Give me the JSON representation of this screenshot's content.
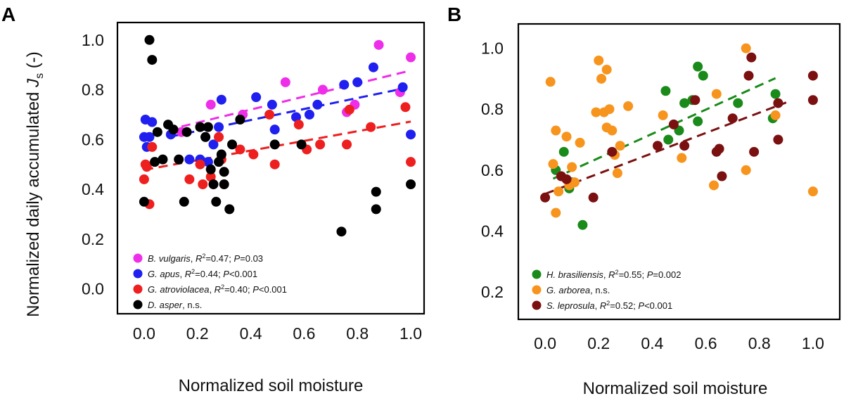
{
  "chart_data": [
    {
      "panel": "A",
      "type": "scatter",
      "xlabel": "Normalized soil moisture",
      "ylabel": "Normalized daily accumulated J_s (-)",
      "ylabel_main": "Normalized daily accumulated ",
      "ylabel_var": "J",
      "ylabel_sub": "s",
      "ylabel_unit": " (-)",
      "xlim": [
        -0.1,
        1.05
      ],
      "ylim": [
        -0.1,
        1.07
      ],
      "xticks": [
        "0.0",
        "0.2",
        "0.4",
        "0.6",
        "0.8",
        "1.0"
      ],
      "yticks": [
        "0.0",
        "0.2",
        "0.4",
        "0.6",
        "0.8",
        "1.0"
      ],
      "legend_position": "bottom-left",
      "series": [
        {
          "name": "B. vulgaris",
          "color": "#ee2ee8",
          "legend_tail": ", R2=0.47; P=0.03",
          "legend_parts": [
            [
              "B. vulgaris",
              "i"
            ],
            [
              ", ",
              ""
            ],
            [
              "R",
              "i"
            ],
            [
              "2",
              "sup"
            ],
            [
              "=0.47; ",
              ""
            ],
            [
              "P",
              "i"
            ],
            [
              "=0.03",
              ""
            ]
          ],
          "fit": [
            [
              0.14,
              0.652
            ],
            [
              0.98,
              0.872
            ]
          ],
          "points": [
            [
              0.14,
              0.63
            ],
            [
              0.25,
              0.74
            ],
            [
              0.37,
              0.7
            ],
            [
              0.53,
              0.83
            ],
            [
              0.67,
              0.8
            ],
            [
              0.76,
              0.71
            ],
            [
              0.79,
              0.74
            ],
            [
              0.88,
              0.98
            ],
            [
              0.96,
              0.79
            ],
            [
              1.0,
              0.93
            ]
          ]
        },
        {
          "name": "G. apus",
          "color": "#1f1ff0",
          "legend_parts": [
            [
              "G. apus",
              "i"
            ],
            [
              ", ",
              ""
            ],
            [
              "R",
              "i"
            ],
            [
              "2",
              "sup"
            ],
            [
              "=0.44; ",
              ""
            ],
            [
              "P",
              "i"
            ],
            [
              "<0.001",
              ""
            ]
          ],
          "fit": [
            [
              0.1,
              0.612
            ],
            [
              0.96,
              0.802
            ]
          ],
          "points": [
            [
              0.0,
              0.61
            ],
            [
              0.005,
              0.68
            ],
            [
              0.01,
              0.57
            ],
            [
              0.02,
              0.61
            ],
            [
              0.03,
              0.67
            ],
            [
              0.1,
              0.62
            ],
            [
              0.17,
              0.52
            ],
            [
              0.21,
              0.52
            ],
            [
              0.23,
              0.61
            ],
            [
              0.24,
              0.51
            ],
            [
              0.26,
              0.58
            ],
            [
              0.28,
              0.65
            ],
            [
              0.29,
              0.76
            ],
            [
              0.42,
              0.77
            ],
            [
              0.48,
              0.74
            ],
            [
              0.49,
              0.64
            ],
            [
              0.57,
              0.69
            ],
            [
              0.62,
              0.7
            ],
            [
              0.65,
              0.74
            ],
            [
              0.75,
              0.82
            ],
            [
              0.8,
              0.83
            ],
            [
              0.86,
              0.89
            ],
            [
              0.97,
              0.81
            ],
            [
              1.0,
              0.62
            ]
          ]
        },
        {
          "name": "G. atroviolacea",
          "color": "#ee1f1f",
          "legend_parts": [
            [
              "G. atroviolacea",
              "i"
            ],
            [
              ", ",
              ""
            ],
            [
              "R",
              "i"
            ],
            [
              "2",
              "sup"
            ],
            [
              "=0.40; ",
              ""
            ],
            [
              "P",
              "i"
            ],
            [
              "<0.001",
              ""
            ]
          ],
          "fit": [
            [
              0.0,
              0.478
            ],
            [
              1.0,
              0.672
            ]
          ],
          "points": [
            [
              0.0,
              0.44
            ],
            [
              0.005,
              0.5
            ],
            [
              0.01,
              0.49
            ],
            [
              0.02,
              0.34
            ],
            [
              0.03,
              0.57
            ],
            [
              0.17,
              0.44
            ],
            [
              0.21,
              0.5
            ],
            [
              0.22,
              0.42
            ],
            [
              0.25,
              0.45
            ],
            [
              0.28,
              0.61
            ],
            [
              0.29,
              0.52
            ],
            [
              0.36,
              0.56
            ],
            [
              0.41,
              0.54
            ],
            [
              0.47,
              0.7
            ],
            [
              0.49,
              0.5
            ],
            [
              0.58,
              0.66
            ],
            [
              0.61,
              0.56
            ],
            [
              0.66,
              0.58
            ],
            [
              0.76,
              0.58
            ],
            [
              0.77,
              0.72
            ],
            [
              0.85,
              0.65
            ],
            [
              0.98,
              0.73
            ],
            [
              1.0,
              0.51
            ]
          ]
        },
        {
          "name": "D. asper",
          "color": "#000000",
          "legend_parts": [
            [
              "D. asper",
              "i"
            ],
            [
              ", n.s.",
              ""
            ]
          ],
          "fit": null,
          "points": [
            [
              0.0,
              0.35
            ],
            [
              0.02,
              1.0
            ],
            [
              0.03,
              0.92
            ],
            [
              0.04,
              0.51
            ],
            [
              0.05,
              0.63
            ],
            [
              0.07,
              0.52
            ],
            [
              0.09,
              0.66
            ],
            [
              0.11,
              0.64
            ],
            [
              0.13,
              0.52
            ],
            [
              0.15,
              0.35
            ],
            [
              0.16,
              0.63
            ],
            [
              0.21,
              0.65
            ],
            [
              0.23,
              0.61
            ],
            [
              0.24,
              0.65
            ],
            [
              0.25,
              0.48
            ],
            [
              0.26,
              0.42
            ],
            [
              0.27,
              0.35
            ],
            [
              0.28,
              0.51
            ],
            [
              0.29,
              0.54
            ],
            [
              0.3,
              0.42
            ],
            [
              0.3,
              0.47
            ],
            [
              0.32,
              0.32
            ],
            [
              0.33,
              0.58
            ],
            [
              0.36,
              0.68
            ],
            [
              0.49,
              0.58
            ],
            [
              0.59,
              0.58
            ],
            [
              0.74,
              0.23
            ],
            [
              0.87,
              0.39
            ],
            [
              0.87,
              0.32
            ],
            [
              1.0,
              0.42
            ]
          ]
        }
      ]
    },
    {
      "panel": "B",
      "type": "scatter",
      "xlabel": "Normalized soil moisture",
      "ylabel": "",
      "xlim": [
        -0.1,
        1.1
      ],
      "ylim": [
        0.11,
        1.08
      ],
      "xticks": [
        "0.0",
        "0.2",
        "0.4",
        "0.6",
        "0.8",
        "1.0"
      ],
      "yticks": [
        "0.2",
        "0.4",
        "0.6",
        "0.8",
        "1.0"
      ],
      "legend_position": "bottom-left",
      "series": [
        {
          "name": "H. brasiliensis",
          "color": "#1a8a1a",
          "legend_parts": [
            [
              "H. brasiliensis",
              "i"
            ],
            [
              ", ",
              ""
            ],
            [
              "R",
              "i"
            ],
            [
              "2",
              "sup"
            ],
            [
              "=0.55; ",
              ""
            ],
            [
              "P",
              "i"
            ],
            [
              "=0.002",
              ""
            ]
          ],
          "fit": [
            [
              0.03,
              0.572
            ],
            [
              0.86,
              0.902
            ]
          ],
          "points": [
            [
              0.04,
              0.6
            ],
            [
              0.07,
              0.66
            ],
            [
              0.09,
              0.54
            ],
            [
              0.1,
              0.56
            ],
            [
              0.14,
              0.42
            ],
            [
              0.45,
              0.86
            ],
            [
              0.46,
              0.7
            ],
            [
              0.5,
              0.73
            ],
            [
              0.52,
              0.82
            ],
            [
              0.55,
              0.83
            ],
            [
              0.57,
              0.76
            ],
            [
              0.57,
              0.94
            ],
            [
              0.59,
              0.91
            ],
            [
              0.72,
              0.82
            ],
            [
              0.85,
              0.77
            ],
            [
              0.86,
              0.85
            ]
          ]
        },
        {
          "name": "G. arborea",
          "color": "#f7941d",
          "legend_parts": [
            [
              "G. arborea",
              "i"
            ],
            [
              ", n.s.",
              ""
            ]
          ],
          "fit": null,
          "points": [
            [
              0.02,
              0.89
            ],
            [
              0.03,
              0.62
            ],
            [
              0.04,
              0.73
            ],
            [
              0.04,
              0.46
            ],
            [
              0.05,
              0.53
            ],
            [
              0.06,
              0.58
            ],
            [
              0.08,
              0.71
            ],
            [
              0.09,
              0.55
            ],
            [
              0.1,
              0.61
            ],
            [
              0.11,
              0.56
            ],
            [
              0.13,
              0.69
            ],
            [
              0.19,
              0.79
            ],
            [
              0.2,
              0.96
            ],
            [
              0.21,
              0.9
            ],
            [
              0.22,
              0.79
            ],
            [
              0.23,
              0.74
            ],
            [
              0.23,
              0.93
            ],
            [
              0.24,
              0.8
            ],
            [
              0.25,
              0.73
            ],
            [
              0.26,
              0.65
            ],
            [
              0.27,
              0.59
            ],
            [
              0.28,
              0.68
            ],
            [
              0.31,
              0.81
            ],
            [
              0.44,
              0.78
            ],
            [
              0.51,
              0.64
            ],
            [
              0.63,
              0.55
            ],
            [
              0.64,
              0.85
            ],
            [
              0.75,
              1.0
            ],
            [
              0.75,
              0.6
            ],
            [
              0.86,
              0.78
            ],
            [
              1.0,
              0.53
            ]
          ]
        },
        {
          "name": "S. leprosula",
          "color": "#7b1010",
          "legend_parts": [
            [
              "S. leprosula",
              "i"
            ],
            [
              ", ",
              ""
            ],
            [
              "R",
              "i"
            ],
            [
              "2",
              "sup"
            ],
            [
              "=0.52; ",
              ""
            ],
            [
              "P",
              "i"
            ],
            [
              "<0.001",
              ""
            ]
          ],
          "fit": [
            [
              0.0,
              0.522
            ],
            [
              0.9,
              0.822
            ]
          ],
          "points": [
            [
              0.0,
              0.51
            ],
            [
              0.06,
              0.58
            ],
            [
              0.08,
              0.57
            ],
            [
              0.18,
              0.51
            ],
            [
              0.25,
              0.66
            ],
            [
              0.42,
              0.68
            ],
            [
              0.48,
              0.75
            ],
            [
              0.52,
              0.68
            ],
            [
              0.56,
              0.83
            ],
            [
              0.64,
              0.66
            ],
            [
              0.65,
              0.67
            ],
            [
              0.66,
              0.58
            ],
            [
              0.7,
              0.77
            ],
            [
              0.76,
              0.91
            ],
            [
              0.77,
              0.97
            ],
            [
              0.78,
              0.66
            ],
            [
              0.87,
              0.82
            ],
            [
              0.87,
              0.7
            ],
            [
              1.0,
              0.91
            ],
            [
              1.0,
              0.83
            ]
          ]
        }
      ]
    }
  ]
}
